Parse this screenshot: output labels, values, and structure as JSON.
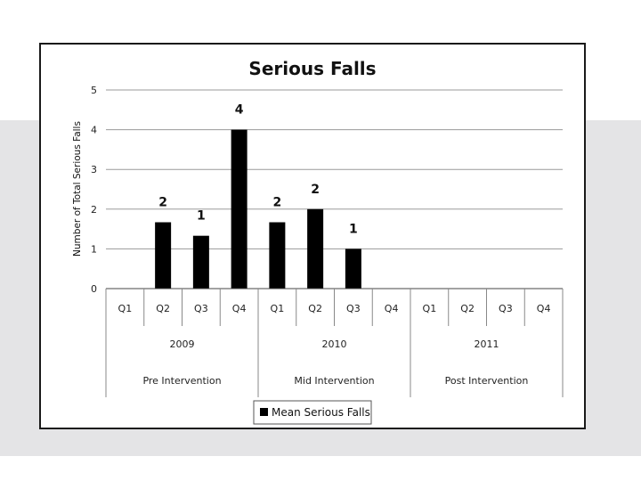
{
  "chart_data": {
    "type": "bar",
    "title": "Serious Falls",
    "ylabel": "Number of Total Serious Falls",
    "xlabel": "",
    "ylim": [
      0,
      5
    ],
    "yticks": [
      "0",
      "1",
      "2",
      "3",
      "4",
      "5"
    ],
    "grid": true,
    "legend_position": "bottom",
    "categories": [
      "Q1",
      "Q2",
      "Q3",
      "Q4",
      "Q1",
      "Q2",
      "Q3",
      "Q4",
      "Q1",
      "Q2",
      "Q3",
      "Q4"
    ],
    "years": [
      "2009",
      "2010",
      "2011"
    ],
    "phases": [
      "Pre Intervention",
      "Mid Intervention",
      "Post Intervention"
    ],
    "series": [
      {
        "name": "Mean Serious Falls",
        "color": "#000000",
        "values": [
          null,
          1.67,
          1.33,
          4,
          1.67,
          2,
          1,
          null,
          null,
          null,
          null,
          null
        ],
        "labels": [
          "",
          "2",
          "1",
          "4",
          "2",
          "2",
          "1",
          "",
          "",
          "",
          "",
          ""
        ]
      }
    ]
  }
}
